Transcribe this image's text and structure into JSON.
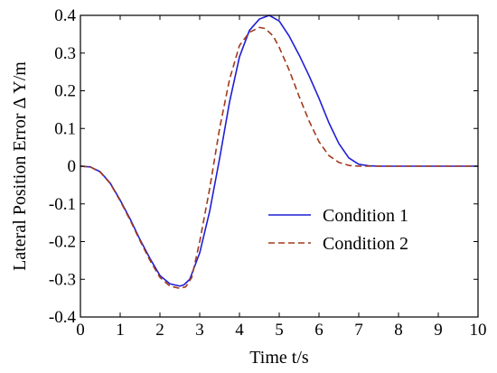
{
  "chart_data": {
    "type": "line",
    "xlabel": "Time t/s",
    "ylabel": "Lateral Position Error   Δ Y/m",
    "xlim": [
      0,
      10
    ],
    "ylim": [
      -0.4,
      0.4
    ],
    "x_ticks": [
      0,
      1,
      2,
      3,
      4,
      5,
      6,
      7,
      8,
      9,
      10
    ],
    "y_ticks": [
      -0.4,
      -0.3,
      -0.2,
      -0.1,
      0,
      0.1,
      0.2,
      0.3,
      0.4
    ],
    "x_tick_labels": [
      "0",
      "1",
      "2",
      "3",
      "4",
      "5",
      "6",
      "7",
      "8",
      "9",
      "10"
    ],
    "y_tick_labels": [
      "-0.4",
      "-0.3",
      "-0.2",
      "-0.1",
      "0",
      "0.1",
      "0.2",
      "0.3",
      "0.4"
    ],
    "grid": false,
    "legend_position": "center-right",
    "series": [
      {
        "name": "Condition 1",
        "color": "#1f1fd6",
        "style": "solid",
        "x": [
          0,
          0.25,
          0.5,
          0.75,
          1.0,
          1.25,
          1.5,
          1.75,
          2.0,
          2.25,
          2.5,
          2.6,
          2.75,
          3.0,
          3.25,
          3.5,
          3.75,
          4.0,
          4.25,
          4.5,
          4.75,
          5.0,
          5.25,
          5.5,
          5.75,
          6.0,
          6.25,
          6.5,
          6.75,
          7.0,
          7.25,
          7.5,
          8.0,
          9.0,
          10.0
        ],
        "y": [
          0,
          -0.002,
          -0.015,
          -0.045,
          -0.09,
          -0.14,
          -0.195,
          -0.245,
          -0.29,
          -0.312,
          -0.318,
          -0.315,
          -0.3,
          -0.23,
          -0.12,
          0.02,
          0.17,
          0.29,
          0.36,
          0.39,
          0.4,
          0.385,
          0.345,
          0.295,
          0.24,
          0.18,
          0.115,
          0.06,
          0.022,
          0.005,
          0.001,
          0,
          0,
          0,
          0
        ]
      },
      {
        "name": "Condition 2",
        "color": "#a13a1a",
        "style": "dashed",
        "x": [
          0,
          0.25,
          0.5,
          0.75,
          1.0,
          1.25,
          1.5,
          1.75,
          2.0,
          2.25,
          2.5,
          2.65,
          2.8,
          3.0,
          3.25,
          3.5,
          3.75,
          4.0,
          4.25,
          4.5,
          4.65,
          4.85,
          5.0,
          5.25,
          5.5,
          5.75,
          6.0,
          6.25,
          6.5,
          6.75,
          7.0,
          8.0,
          9.0,
          10.0
        ],
        "y": [
          0,
          -0.002,
          -0.016,
          -0.046,
          -0.092,
          -0.143,
          -0.198,
          -0.25,
          -0.295,
          -0.318,
          -0.324,
          -0.32,
          -0.295,
          -0.2,
          -0.06,
          0.1,
          0.23,
          0.32,
          0.355,
          0.368,
          0.365,
          0.345,
          0.315,
          0.255,
          0.185,
          0.12,
          0.065,
          0.028,
          0.01,
          0.002,
          0,
          0,
          0,
          0
        ]
      }
    ]
  }
}
